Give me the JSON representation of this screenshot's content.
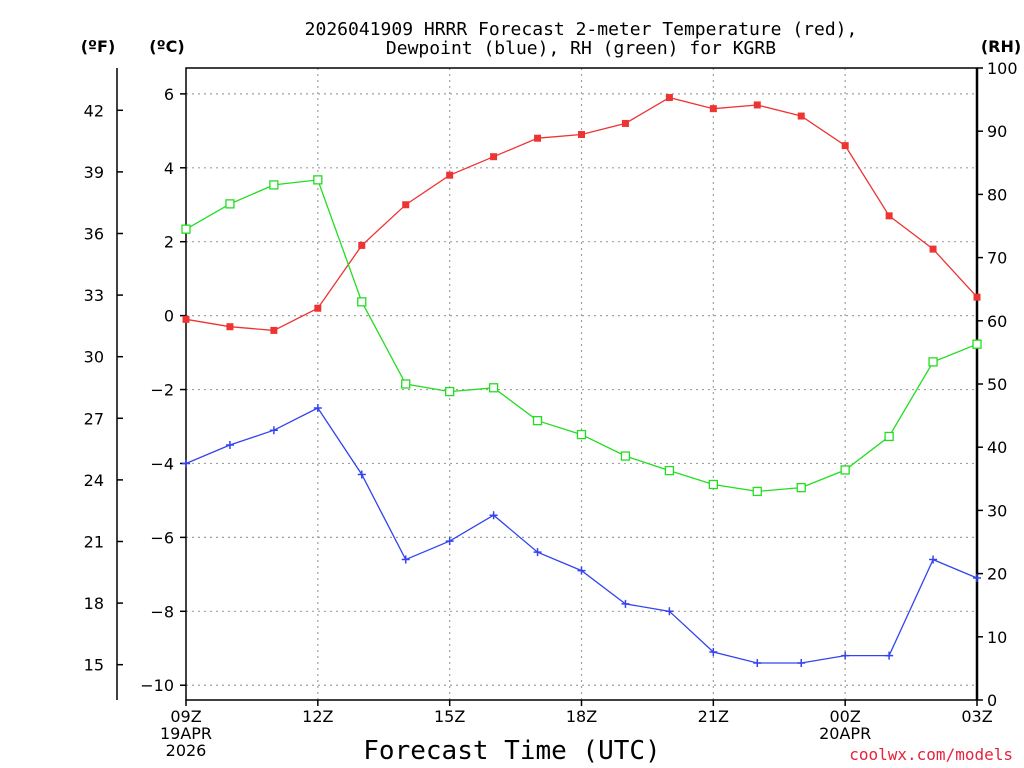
{
  "chart_data": {
    "type": "line",
    "title": "2026041909 HRRR Forecast 2-meter Temperature (red),",
    "subtitle": "Dewpoint (blue), RH (green) for KGRB",
    "xlabel": "Forecast Time (UTC)",
    "credit": "coolwx.com/models",
    "units": {
      "fahrenheit": "(ºF)",
      "celsius": "(ºC)",
      "rh": "(RH)"
    },
    "x": [
      0,
      1,
      2,
      3,
      4,
      5,
      6,
      7,
      8,
      9,
      10,
      11,
      12,
      13,
      14,
      15,
      16,
      17,
      18
    ],
    "xlim": [
      0,
      18
    ],
    "x_ticks": [
      {
        "x": 0,
        "lines": [
          "09Z",
          "19APR",
          "2026"
        ]
      },
      {
        "x": 3,
        "lines": [
          "12Z"
        ]
      },
      {
        "x": 6,
        "lines": [
          "15Z"
        ]
      },
      {
        "x": 9,
        "lines": [
          "18Z"
        ]
      },
      {
        "x": 12,
        "lines": [
          "21Z"
        ]
      },
      {
        "x": 15,
        "lines": [
          "00Z",
          "20APR"
        ]
      },
      {
        "x": 18,
        "lines": [
          "03Z"
        ]
      }
    ],
    "y_left_celsius": {
      "lim": [
        -10.4,
        6.7
      ],
      "ticks": [
        -10,
        -8,
        -6,
        -4,
        -2,
        0,
        2,
        4,
        6
      ],
      "labels": [
        "−10",
        "−8",
        "−6",
        "−4",
        "−2",
        "0",
        "2",
        "4",
        "6"
      ]
    },
    "y_left_fahrenheit": {
      "ticks": [
        15,
        18,
        21,
        24,
        27,
        30,
        33,
        36,
        39,
        42
      ],
      "labels": [
        "15",
        "18",
        "21",
        "24",
        "27",
        "30",
        "33",
        "36",
        "39",
        "42"
      ]
    },
    "y_right_rh": {
      "lim": [
        0,
        100
      ],
      "ticks": [
        0,
        10,
        20,
        30,
        40,
        50,
        60,
        70,
        80,
        90,
        100
      ],
      "labels": [
        "0",
        "10",
        "20",
        "30",
        "40",
        "50",
        "60",
        "70",
        "80",
        "90",
        "100"
      ]
    },
    "series": [
      {
        "name": "Temperature",
        "axis": "celsius",
        "color": "#ee3333",
        "marker": "filled-square",
        "values": [
          -0.1,
          -0.3,
          -0.4,
          0.2,
          1.9,
          3.0,
          3.8,
          4.3,
          4.8,
          4.9,
          5.2,
          5.9,
          5.6,
          5.7,
          5.4,
          4.6,
          2.7,
          1.8,
          0.5
        ]
      },
      {
        "name": "Dewpoint",
        "axis": "celsius",
        "color": "#3344ee",
        "marker": "plus",
        "values": [
          -4.0,
          -3.5,
          -3.1,
          -2.5,
          -4.3,
          -6.6,
          -6.1,
          -5.4,
          -6.4,
          -6.9,
          -7.8,
          -8.0,
          -9.1,
          -9.4,
          -9.4,
          -9.2,
          -9.2,
          -6.6,
          -7.1
        ]
      },
      {
        "name": "RH",
        "axis": "rh",
        "color": "#22dd22",
        "marker": "open-square",
        "values": [
          74.5,
          78.5,
          81.5,
          82.3,
          63,
          50,
          48.8,
          49.4,
          44.2,
          42,
          38.6,
          36.3,
          34.1,
          33,
          33.6,
          36.4,
          41.7,
          53.5,
          56.3
        ]
      }
    ]
  }
}
